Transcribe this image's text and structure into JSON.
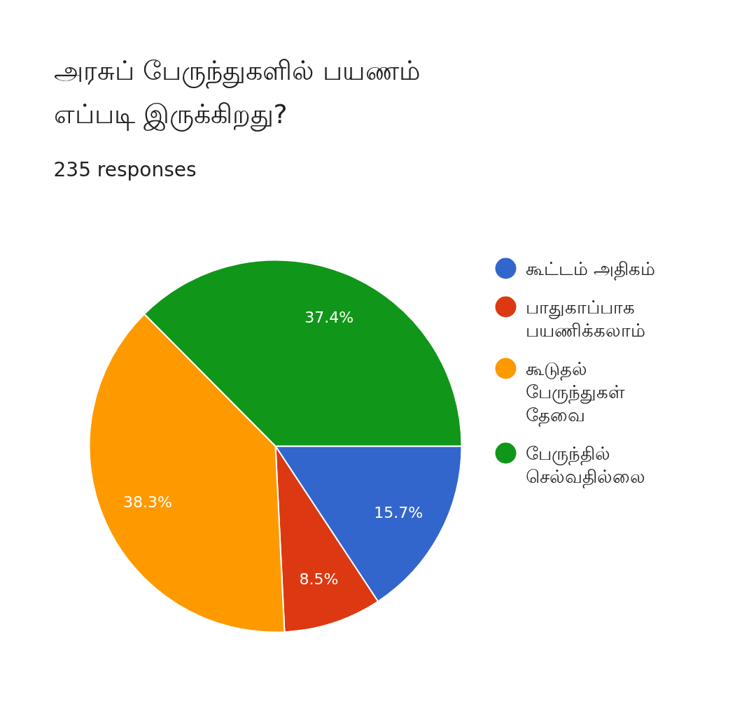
{
  "chart_data": {
    "type": "pie",
    "title": "அரசுப் பேருந்துகளில் பயணம் எப்படி இருக்கிறது?",
    "subtitle": "235 responses",
    "categories": [
      "கூட்டம் அதிகம்",
      "பாதுகாப்பாக பயணிக்கலாம்",
      "கூடுதல் பேருந்துகள் தேவை",
      "பேருந்தில் செல்வதில்லை"
    ],
    "values": [
      15.7,
      8.5,
      38.3,
      37.4
    ],
    "colors": [
      "#3366cc",
      "#dc3912",
      "#ff9900",
      "#109618"
    ],
    "value_labels": [
      "15.7%",
      "8.5%",
      "38.3%",
      "37.4%"
    ],
    "legend": "right"
  }
}
